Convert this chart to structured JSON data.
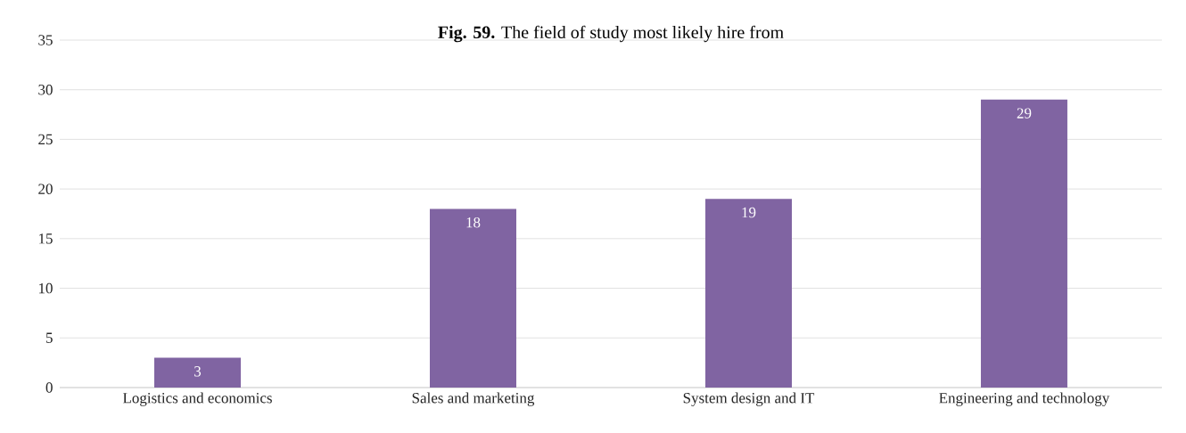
{
  "chart_data": {
    "type": "bar",
    "title": "**Fig. 59.** The field of study most likely hire from",
    "categories": [
      "Logistics and economics",
      "Sales and marketing",
      "System design and IT",
      "Engineering and technology"
    ],
    "values": [
      3,
      18,
      19,
      29
    ],
    "color": "#8064a2",
    "ylim": [
      0,
      35
    ],
    "yticks": [
      0,
      5,
      10,
      15,
      20,
      25,
      30,
      35
    ],
    "grid": "y",
    "data_labels": true
  }
}
